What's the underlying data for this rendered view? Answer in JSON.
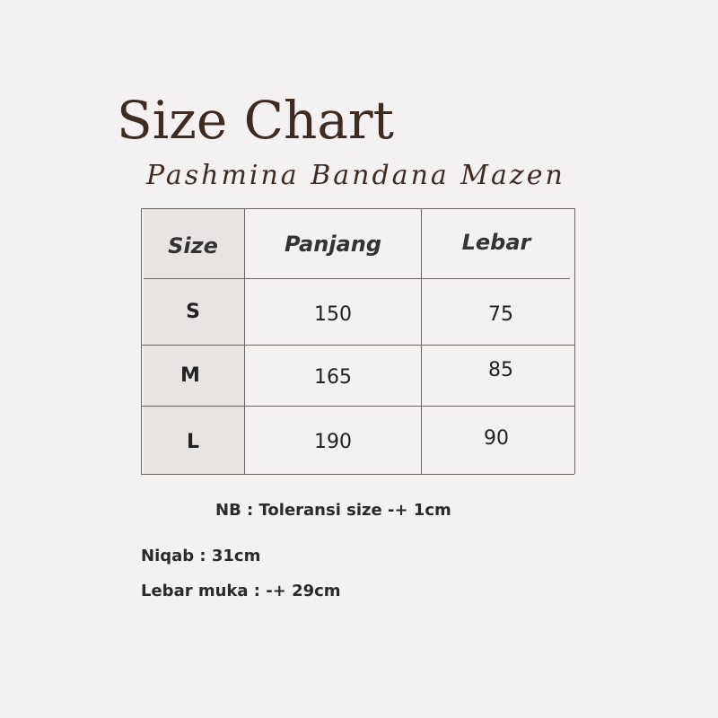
{
  "title": "Size Chart",
  "subtitle": "Pashmina Bandana Mazen",
  "table": {
    "headers": [
      "Size",
      "Panjang",
      "Lebar"
    ],
    "rows": [
      [
        "S",
        "150",
        "75"
      ],
      [
        "M",
        "165",
        "85"
      ],
      [
        "L",
        "190",
        "90"
      ]
    ]
  },
  "notes": {
    "tolerance": "NB : Toleransi size -+ 1cm",
    "niqab": "Niqab : 31cm",
    "face": "Lebar muka : -+ 29cm"
  }
}
